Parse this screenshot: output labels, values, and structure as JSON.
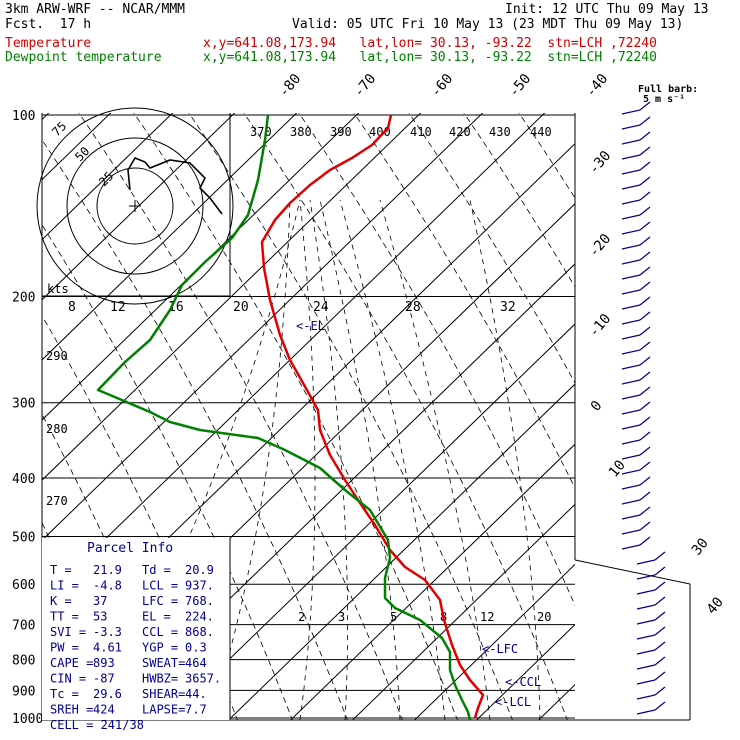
{
  "header": {
    "title": "3km ARW-WRF -- NCAR/MMM",
    "forecast": "Fcst.  17 h",
    "init": "Init: 12 UTC Thu 09 May 13",
    "valid": "Valid: 05 UTC Fri 10 May 13 (23 MDT Thu 09 May 13)",
    "temp_label": "Temperature",
    "dew_label": "Dewpoint temperature",
    "coords": "x,y=641.08,173.94   lat,lon= 30.13, -93.22  stn=LCH ,72240",
    "barb_note_1": "Full barb:",
    "barb_note_2": "5 m s⁻¹"
  },
  "colors": {
    "temperature": "#e00000",
    "dewpoint": "#008000",
    "wind": "#00008b",
    "grid": "#000000"
  },
  "chart_data": {
    "type": "line",
    "title": "Skew-T log-P sounding",
    "xlabel": "",
    "ylabel": "",
    "pressure_levels": [
      100,
      200,
      300,
      400,
      500,
      600,
      700,
      800,
      900,
      1000
    ],
    "isotherm_labels": [
      "-80",
      "-70",
      "-60",
      "-50",
      "-40",
      "-30",
      "-20",
      "-10",
      "0",
      "10",
      "30",
      "40"
    ],
    "theta_labels": [
      "370",
      "380",
      "390",
      "400",
      "410",
      "420",
      "430",
      "440"
    ],
    "theta_left_labels": [
      "290",
      "280",
      "270"
    ],
    "mixing_ratio_upper_labels": [
      "8",
      "12",
      "16",
      "20",
      "24",
      "28",
      "32"
    ],
    "mixing_ratio_lower_labels": [
      "2",
      "3",
      "5",
      "8",
      "12",
      "20"
    ],
    "hodograph": {
      "rings": [
        "25",
        "50",
        "75"
      ],
      "units": "kts"
    },
    "annotations": [
      "<-EL",
      "<-LFC",
      "<-CCL",
      "<-LCL"
    ],
    "series": [
      {
        "name": "Temperature",
        "points": [
          [
            391,
            115
          ],
          [
            388,
            128
          ],
          [
            372,
            145
          ],
          [
            352,
            158
          ],
          [
            330,
            170
          ],
          [
            310,
            185
          ],
          [
            290,
            203
          ],
          [
            275,
            220
          ],
          [
            262,
            242
          ],
          [
            264,
            268
          ],
          [
            270,
            300
          ],
          [
            280,
            335
          ],
          [
            290,
            360
          ],
          [
            303,
            383
          ],
          [
            318,
            410
          ],
          [
            320,
            430
          ],
          [
            330,
            455
          ],
          [
            345,
            480
          ],
          [
            360,
            503
          ],
          [
            375,
            525
          ],
          [
            390,
            550
          ],
          [
            405,
            567
          ],
          [
            425,
            580
          ],
          [
            440,
            600
          ],
          [
            444,
            620
          ],
          [
            452,
            645
          ],
          [
            460,
            665
          ],
          [
            470,
            680
          ],
          [
            483,
            695
          ],
          [
            478,
            708
          ],
          [
            475,
            718
          ]
        ]
      },
      {
        "name": "Dewpoint temperature",
        "points": [
          [
            268,
            115
          ],
          [
            265,
            140
          ],
          [
            258,
            180
          ],
          [
            248,
            215
          ],
          [
            232,
            238
          ],
          [
            205,
            262
          ],
          [
            182,
            285
          ],
          [
            170,
            310
          ],
          [
            150,
            340
          ],
          [
            125,
            362
          ],
          [
            98,
            390
          ],
          [
            110,
            395
          ],
          [
            150,
            412
          ],
          [
            170,
            422
          ],
          [
            200,
            430
          ],
          [
            258,
            438
          ],
          [
            285,
            450
          ],
          [
            320,
            468
          ],
          [
            345,
            490
          ],
          [
            370,
            510
          ],
          [
            388,
            540
          ],
          [
            390,
            558
          ],
          [
            385,
            578
          ],
          [
            385,
            598
          ],
          [
            395,
            608
          ],
          [
            420,
            620
          ],
          [
            442,
            638
          ],
          [
            450,
            652
          ],
          [
            450,
            670
          ],
          [
            455,
            685
          ],
          [
            462,
            700
          ],
          [
            468,
            712
          ],
          [
            470,
            720
          ]
        ]
      }
    ],
    "parcel_info": {
      "title": "Parcel Info",
      "rows": [
        [
          "T  =",
          "21.9",
          "Td =",
          "20.9"
        ],
        [
          "LI =",
          "-4.8",
          "LCL =",
          "937."
        ],
        [
          "K  =",
          "37",
          "LFC =",
          "768."
        ],
        [
          "TT =",
          "53",
          "EL  =",
          "224."
        ],
        [
          "SVI =",
          "-3.3",
          "CCL =",
          "868."
        ],
        [
          "PW =",
          "4.61",
          "YGP =",
          "0.3"
        ],
        [
          "CAPE =",
          "893",
          "SWEAT=",
          "464"
        ],
        [
          "CIN =",
          "-87",
          "HWBZ=",
          "3657."
        ],
        [
          "Tc =",
          "29.6",
          "SHEAR=",
          "44."
        ],
        [
          "SREH =",
          "424",
          "LAPSE=",
          "7.7"
        ],
        [
          "CELL = 241/38",
          "",
          "",
          ""
        ]
      ]
    }
  }
}
